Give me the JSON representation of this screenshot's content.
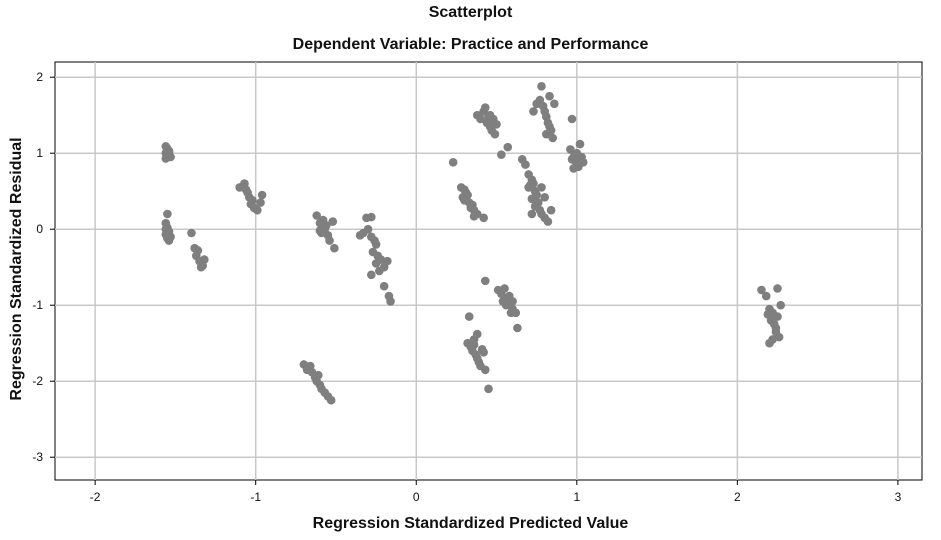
{
  "chart_data": {
    "type": "scatter",
    "title": "Scatterplot",
    "subtitle": "Dependent Variable: Practice and Performance",
    "xlabel": "Regression Standardized Predicted Value",
    "ylabel": "Regression Standardized Residual",
    "xlim": [
      -2.25,
      3.15
    ],
    "ylim": [
      -3.3,
      2.2
    ],
    "xticks": [
      -2,
      -1,
      0,
      1,
      2,
      3
    ],
    "yticks": [
      2,
      1,
      0,
      -1,
      -2,
      -3
    ],
    "grid": true,
    "point_color": "#7f7f7f",
    "points": [
      [
        -1.56,
        1.09
      ],
      [
        -1.55,
        1.06
      ],
      [
        -1.54,
        1.03
      ],
      [
        -1.56,
        1.0
      ],
      [
        -1.55,
        0.97
      ],
      [
        -1.53,
        0.95
      ],
      [
        -1.56,
        0.93
      ],
      [
        -1.54,
        1.01
      ],
      [
        -1.55,
        0.2
      ],
      [
        -1.56,
        0.08
      ],
      [
        -1.55,
        0.02
      ],
      [
        -1.54,
        -0.03
      ],
      [
        -1.56,
        -0.07
      ],
      [
        -1.55,
        -0.12
      ],
      [
        -1.54,
        -0.15
      ],
      [
        -1.53,
        -0.1
      ],
      [
        -1.56,
        0.0
      ],
      [
        -1.4,
        -0.05
      ],
      [
        -1.38,
        -0.25
      ],
      [
        -1.36,
        -0.28
      ],
      [
        -1.37,
        -0.35
      ],
      [
        -1.35,
        -0.42
      ],
      [
        -1.33,
        -0.48
      ],
      [
        -1.34,
        -0.5
      ],
      [
        -1.32,
        -0.4
      ],
      [
        -1.1,
        0.55
      ],
      [
        -1.07,
        0.6
      ],
      [
        -1.05,
        0.48
      ],
      [
        -1.04,
        0.42
      ],
      [
        -1.02,
        0.38
      ],
      [
        -1.03,
        0.33
      ],
      [
        -1.01,
        0.28
      ],
      [
        -0.99,
        0.25
      ],
      [
        -0.97,
        0.35
      ],
      [
        -0.96,
        0.45
      ],
      [
        -1.06,
        0.52
      ],
      [
        -0.62,
        0.18
      ],
      [
        -0.6,
        0.08
      ],
      [
        -0.58,
        0.12
      ],
      [
        -0.57,
        0.0
      ],
      [
        -0.59,
        -0.05
      ],
      [
        -0.55,
        -0.08
      ],
      [
        -0.54,
        -0.15
      ],
      [
        -0.56,
        0.05
      ],
      [
        -0.52,
        0.1
      ],
      [
        -0.51,
        -0.25
      ],
      [
        -0.6,
        -0.02
      ],
      [
        -0.35,
        -0.08
      ],
      [
        -0.33,
        -0.05
      ],
      [
        -0.31,
        0.15
      ],
      [
        -0.28,
        0.16
      ],
      [
        -0.3,
        0.0
      ],
      [
        -0.28,
        -0.1
      ],
      [
        -0.26,
        -0.15
      ],
      [
        -0.25,
        -0.2
      ],
      [
        -0.27,
        -0.3
      ],
      [
        -0.24,
        -0.35
      ],
      [
        -0.22,
        -0.4
      ],
      [
        -0.25,
        -0.45
      ],
      [
        -0.23,
        -0.55
      ],
      [
        -0.2,
        -0.5
      ],
      [
        -0.18,
        -0.42
      ],
      [
        -0.2,
        -0.75
      ],
      [
        -0.17,
        -0.88
      ],
      [
        -0.16,
        -0.95
      ],
      [
        -0.28,
        -0.6
      ],
      [
        -0.7,
        -1.78
      ],
      [
        -0.68,
        -1.85
      ],
      [
        -0.65,
        -1.88
      ],
      [
        -0.63,
        -1.95
      ],
      [
        -0.62,
        -2.0
      ],
      [
        -0.6,
        -2.05
      ],
      [
        -0.59,
        -2.1
      ],
      [
        -0.57,
        -2.15
      ],
      [
        -0.55,
        -2.2
      ],
      [
        -0.53,
        -2.25
      ],
      [
        -0.61,
        -1.92
      ],
      [
        -0.66,
        -1.8
      ],
      [
        0.23,
        0.88
      ],
      [
        0.28,
        0.55
      ],
      [
        0.3,
        0.52
      ],
      [
        0.31,
        0.48
      ],
      [
        0.32,
        0.45
      ],
      [
        0.3,
        0.38
      ],
      [
        0.33,
        0.35
      ],
      [
        0.35,
        0.32
      ],
      [
        0.34,
        0.28
      ],
      [
        0.36,
        0.25
      ],
      [
        0.38,
        0.2
      ],
      [
        0.36,
        0.17
      ],
      [
        0.42,
        0.15
      ],
      [
        0.29,
        0.42
      ],
      [
        0.38,
        1.5
      ],
      [
        0.4,
        1.45
      ],
      [
        0.42,
        1.55
      ],
      [
        0.43,
        1.6
      ],
      [
        0.45,
        1.48
      ],
      [
        0.44,
        1.4
      ],
      [
        0.46,
        1.35
      ],
      [
        0.47,
        1.3
      ],
      [
        0.48,
        1.45
      ],
      [
        0.49,
        1.25
      ],
      [
        0.5,
        1.38
      ],
      [
        0.46,
        1.5
      ],
      [
        0.53,
        0.98
      ],
      [
        0.57,
        1.08
      ],
      [
        0.66,
        0.92
      ],
      [
        0.68,
        0.85
      ],
      [
        0.7,
        0.72
      ],
      [
        0.72,
        0.65
      ],
      [
        0.7,
        0.55
      ],
      [
        0.73,
        0.6
      ],
      [
        0.74,
        0.5
      ],
      [
        0.75,
        0.45
      ],
      [
        0.72,
        0.4
      ],
      [
        0.76,
        0.35
      ],
      [
        0.74,
        0.3
      ],
      [
        0.77,
        0.25
      ],
      [
        0.78,
        0.2
      ],
      [
        0.8,
        0.42
      ],
      [
        0.72,
        0.2
      ],
      [
        0.8,
        0.15
      ],
      [
        0.82,
        0.1
      ],
      [
        0.84,
        0.25
      ],
      [
        0.78,
        0.55
      ],
      [
        0.71,
        0.58
      ],
      [
        0.73,
        1.55
      ],
      [
        0.75,
        1.65
      ],
      [
        0.77,
        1.7
      ],
      [
        0.78,
        1.88
      ],
      [
        0.79,
        1.62
      ],
      [
        0.8,
        1.55
      ],
      [
        0.81,
        1.48
      ],
      [
        0.82,
        1.4
      ],
      [
        0.83,
        1.35
      ],
      [
        0.84,
        1.3
      ],
      [
        0.81,
        1.25
      ],
      [
        0.85,
        1.2
      ],
      [
        0.86,
        1.65
      ],
      [
        0.83,
        1.75
      ],
      [
        0.96,
        1.05
      ],
      [
        0.97,
        1.45
      ],
      [
        0.98,
        0.95
      ],
      [
        0.99,
        0.9
      ],
      [
        1.0,
        0.85
      ],
      [
        1.01,
        0.82
      ],
      [
        1.02,
        1.12
      ],
      [
        1.03,
        0.95
      ],
      [
        1.0,
        1.0
      ],
      [
        0.98,
        0.8
      ],
      [
        1.04,
        0.88
      ],
      [
        0.97,
        0.92
      ],
      [
        0.33,
        -1.15
      ],
      [
        0.32,
        -1.5
      ],
      [
        0.34,
        -1.55
      ],
      [
        0.35,
        -1.6
      ],
      [
        0.36,
        -1.45
      ],
      [
        0.38,
        -1.7
      ],
      [
        0.37,
        -1.65
      ],
      [
        0.39,
        -1.75
      ],
      [
        0.4,
        -1.8
      ],
      [
        0.41,
        -1.58
      ],
      [
        0.42,
        -1.62
      ],
      [
        0.38,
        -1.38
      ],
      [
        0.43,
        -1.85
      ],
      [
        0.45,
        -2.1
      ],
      [
        0.36,
        -1.52
      ],
      [
        0.43,
        -0.68
      ],
      [
        0.51,
        -0.8
      ],
      [
        0.53,
        -0.85
      ],
      [
        0.54,
        -0.95
      ],
      [
        0.55,
        -0.92
      ],
      [
        0.56,
        -1.0
      ],
      [
        0.58,
        -0.88
      ],
      [
        0.6,
        -1.05
      ],
      [
        0.59,
        -1.1
      ],
      [
        0.6,
        -0.95
      ],
      [
        0.62,
        -1.1
      ],
      [
        0.63,
        -1.3
      ],
      [
        0.55,
        -0.78
      ],
      [
        2.15,
        -0.8
      ],
      [
        2.18,
        -0.88
      ],
      [
        2.2,
        -1.05
      ],
      [
        2.22,
        -1.1
      ],
      [
        2.21,
        -1.2
      ],
      [
        2.23,
        -1.25
      ],
      [
        2.25,
        -1.15
      ],
      [
        2.24,
        -1.35
      ],
      [
        2.26,
        -1.42
      ],
      [
        2.22,
        -1.45
      ],
      [
        2.2,
        -1.5
      ],
      [
        2.25,
        -0.78
      ],
      [
        2.27,
        -1.0
      ],
      [
        2.19,
        -1.12
      ],
      [
        2.24,
        -1.3
      ]
    ]
  }
}
